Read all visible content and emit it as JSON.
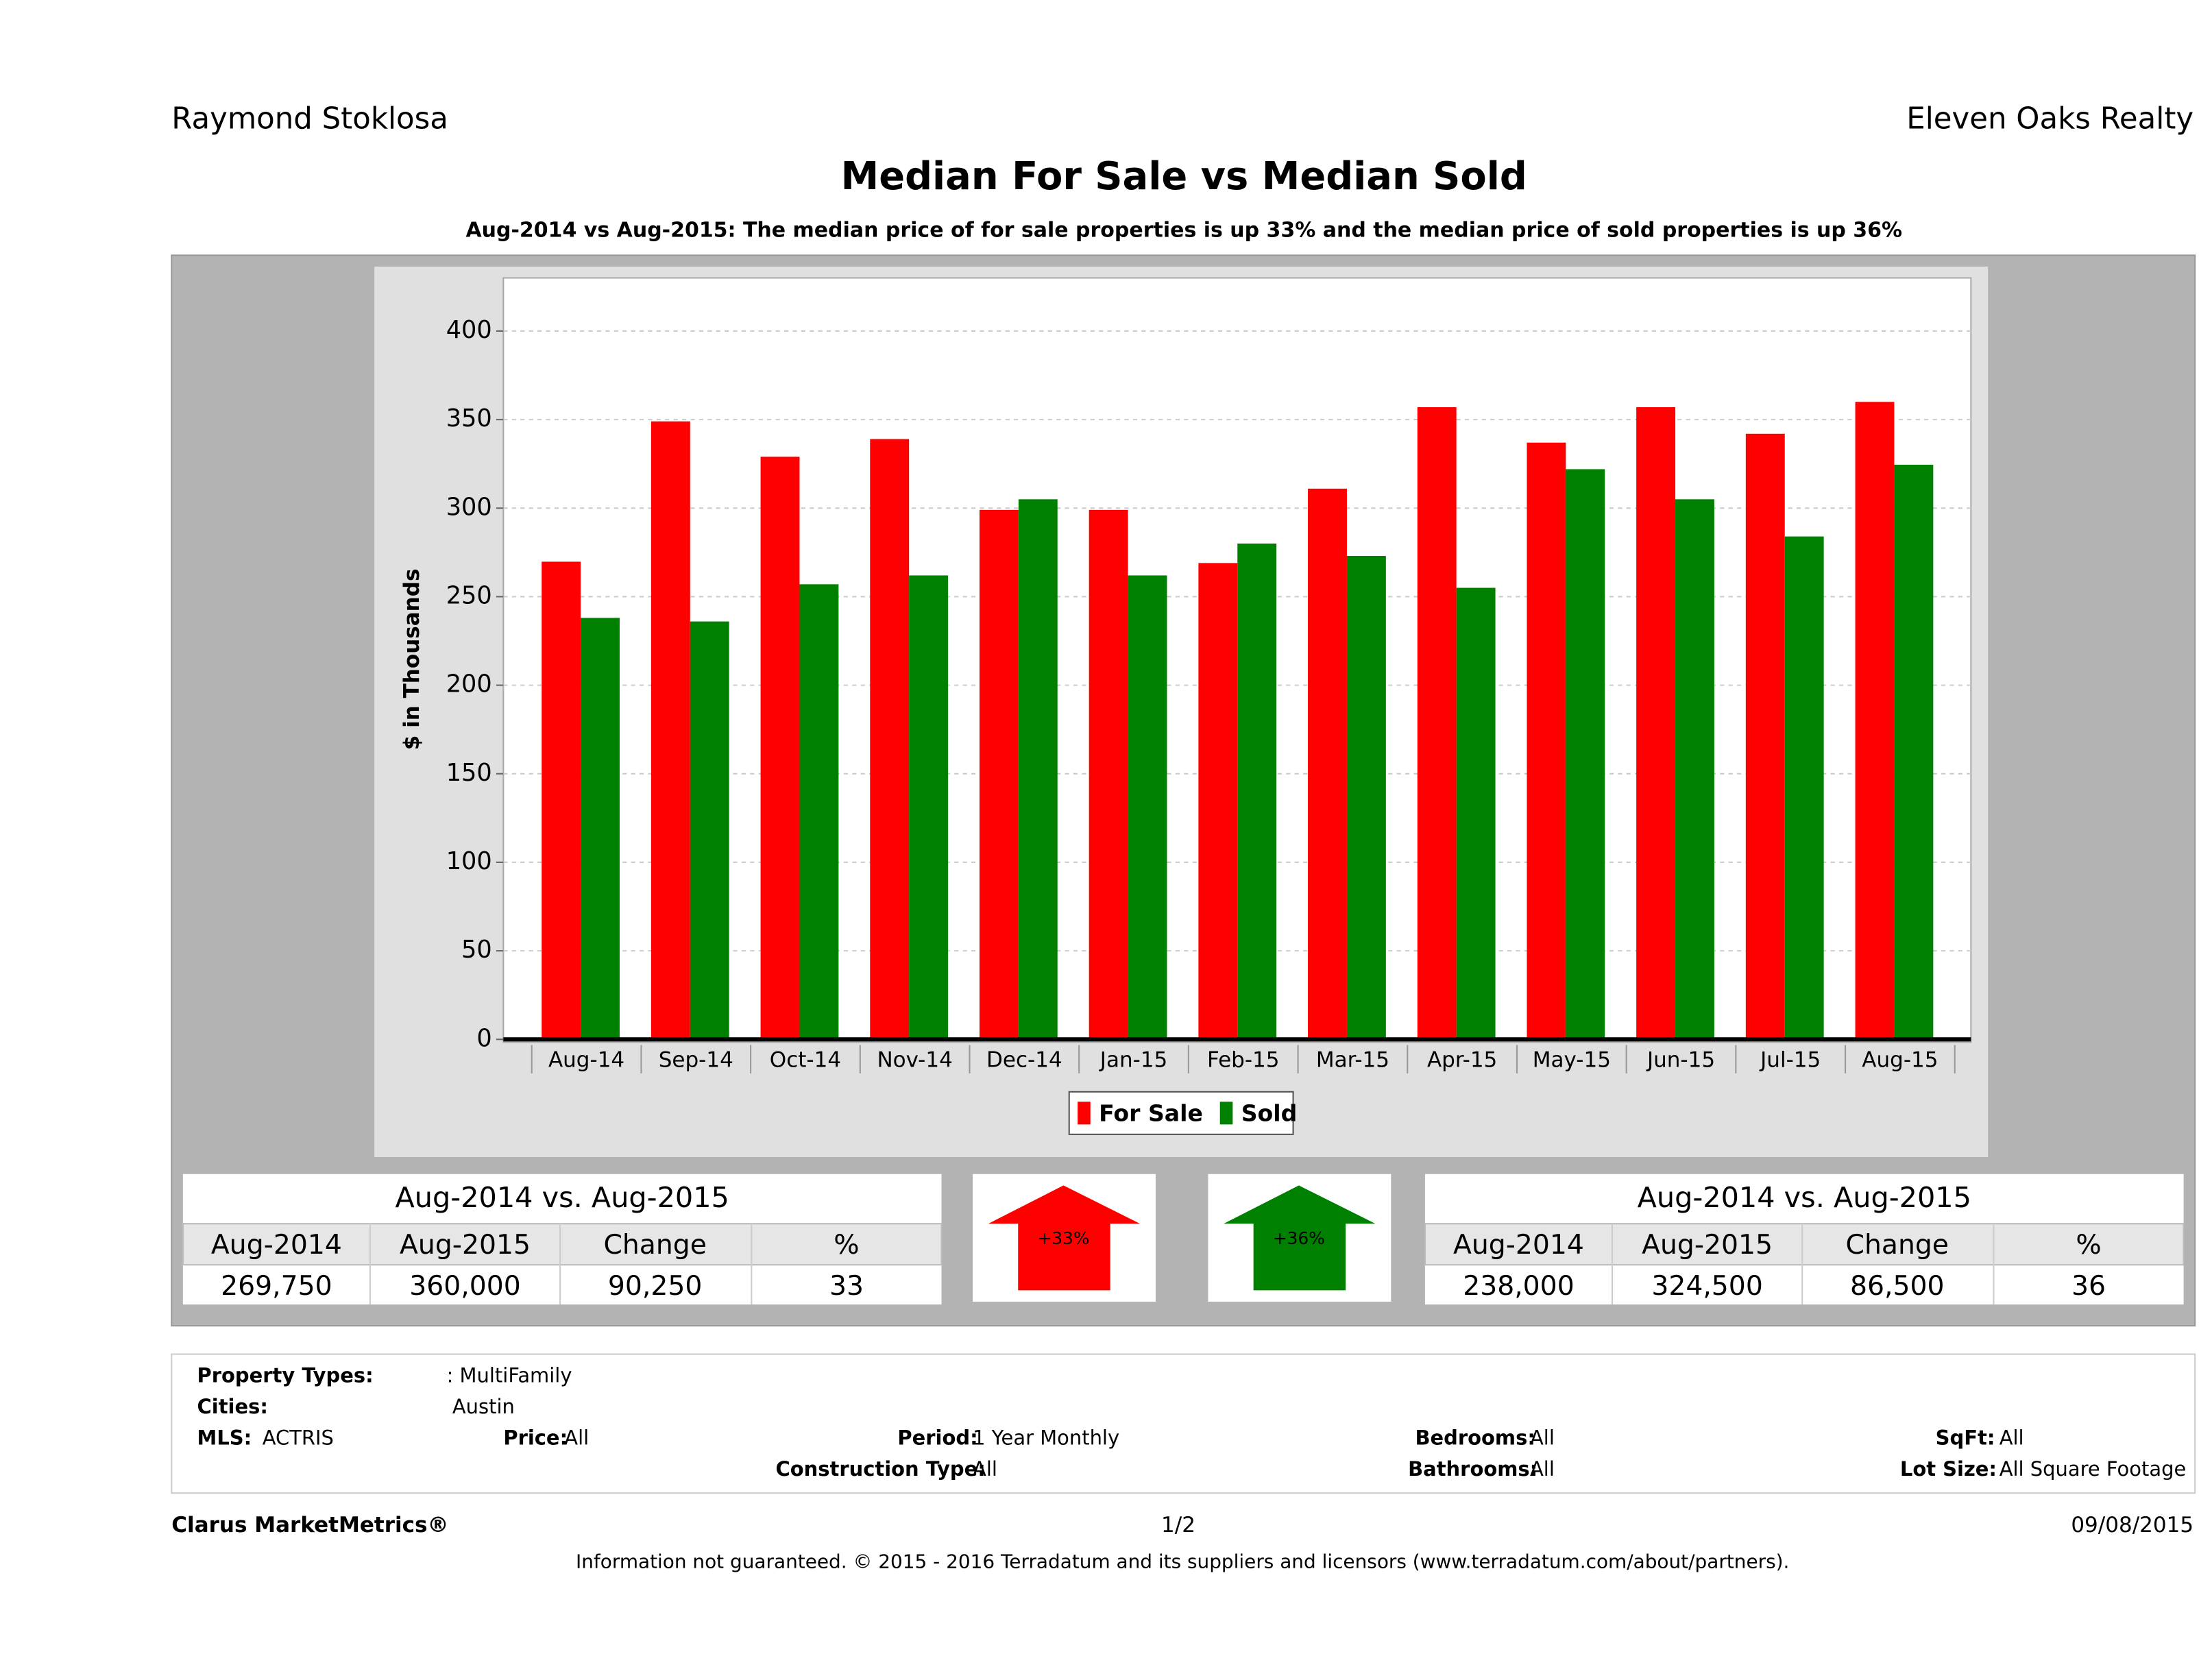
{
  "header": {
    "left": "Raymond Stoklosa",
    "right": "Eleven Oaks Realty"
  },
  "chart_data": {
    "type": "bar",
    "title": "Median For Sale vs Median Sold",
    "subtitle": "Aug-2014 vs Aug-2015: The median price of for sale properties is up 33% and the median price of sold properties is up 36%",
    "y_label": "$ in Thousands",
    "categories": [
      "Aug-14",
      "Sep-14",
      "Oct-14",
      "Nov-14",
      "Dec-14",
      "Jan-15",
      "Feb-15",
      "Mar-15",
      "Apr-15",
      "May-15",
      "Jun-15",
      "Jul-15",
      "Aug-15"
    ],
    "series": [
      {
        "name": "For Sale",
        "color": "#ff0000",
        "values": [
          269.75,
          349,
          329,
          339,
          299,
          299,
          269,
          311,
          357,
          337,
          357,
          342,
          360
        ]
      },
      {
        "name": "Sold",
        "color": "#008000",
        "values": [
          238,
          236,
          257,
          262,
          305,
          262,
          280,
          273,
          255,
          322,
          305,
          284,
          324.5
        ]
      }
    ],
    "ylim": [
      0,
      430
    ],
    "yticks": [
      0,
      50,
      100,
      150,
      200,
      250,
      300,
      350,
      400
    ],
    "grid": true
  },
  "summary": [
    {
      "title": "Aug-2014 vs. Aug-2015",
      "headers": [
        "Aug-2014",
        "Aug-2015",
        "Change",
        "%"
      ],
      "values": [
        "269,750",
        "360,000",
        "90,250",
        "33"
      ],
      "badge": "+33%"
    },
    {
      "title": "Aug-2014 vs. Aug-2015",
      "headers": [
        "Aug-2014",
        "Aug-2015",
        "Change",
        "%"
      ],
      "values": [
        "238,000",
        "324,500",
        "86,500",
        "36"
      ],
      "badge": "+36%"
    }
  ],
  "filters": [
    {
      "label": "Property Types:",
      "value": ": MultiFamily"
    },
    {
      "label": "Cities:",
      "value": "Austin"
    },
    {
      "label": "MLS:",
      "value": "ACTRIS"
    },
    {
      "label": "Price:",
      "value": "All"
    },
    {
      "label": "Period:",
      "value": "1 Year Monthly"
    },
    {
      "label": "Bedrooms:",
      "value": "All"
    },
    {
      "label": "SqFt:",
      "value": "All"
    },
    {
      "label": "Construction Type:",
      "value": "All"
    },
    {
      "label": "Bathrooms:",
      "value": "All"
    },
    {
      "label": "Lot Size:",
      "value": "All Square Footage"
    }
  ],
  "footer": {
    "brand": "Clarus MarketMetrics®",
    "page": "1/2",
    "date": "09/08/2015",
    "disclaimer": "Information not guaranteed. © 2015 - 2016 Terradatum and its suppliers and licensors (www.terradatum.com/about/partners)."
  }
}
